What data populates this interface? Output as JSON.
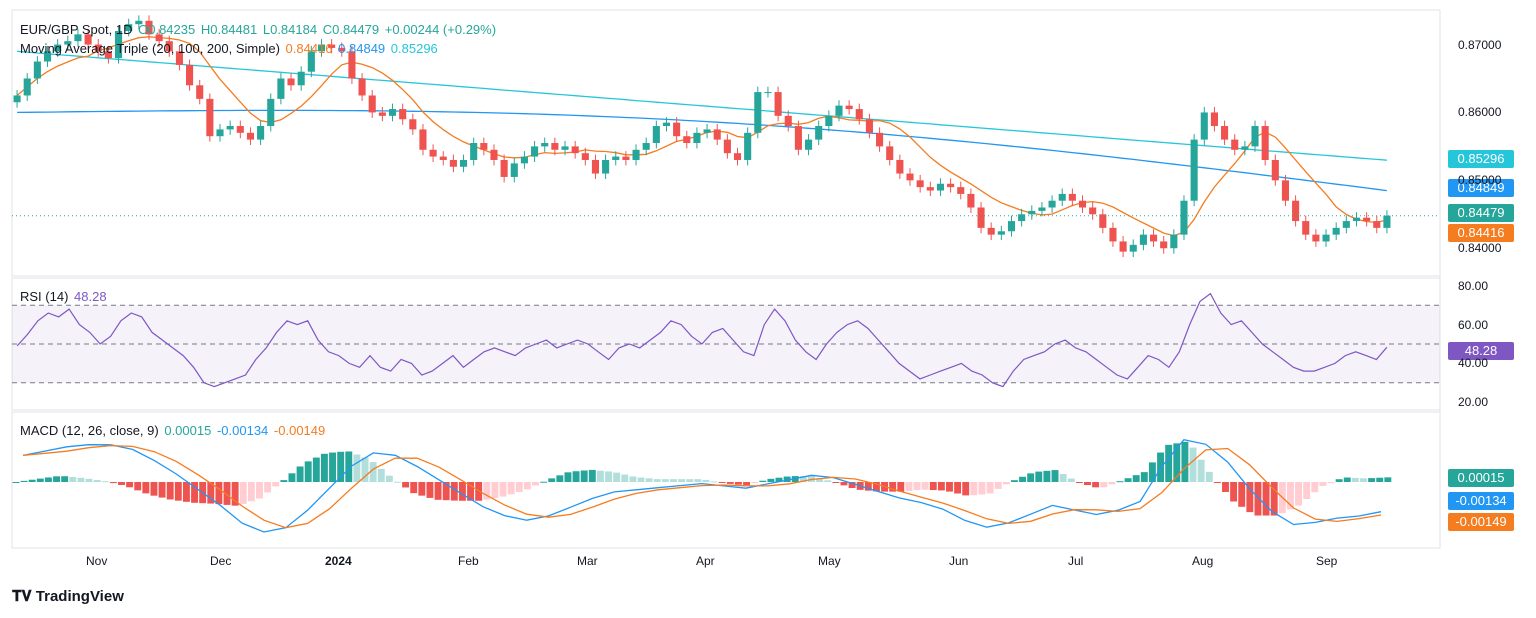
{
  "header": {
    "symbol": "EUR/GBP Spot, 1D",
    "open": "O0.84235",
    "high": "H0.84481",
    "low": "L0.84184",
    "close": "C0.84479",
    "change": "+0.00244 (+0.29%)",
    "ma_label": "Moving Average Triple (20, 100, 200, Simple)",
    "ma20": "0.84416",
    "ma100": "0.84849",
    "ma200": "0.85296"
  },
  "rsi": {
    "label": "RSI (14)",
    "value": "48.28"
  },
  "macd": {
    "label": "MACD (12, 26, close, 9)",
    "hist": "0.00015",
    "macd": "-0.00134",
    "signal": "-0.00149"
  },
  "price_badges": {
    "ma200": "0.85296",
    "ma100": "0.84849",
    "close": "0.84479",
    "ma20": "0.84416"
  },
  "brand": "TradingView",
  "colors": {
    "up": "#26a69a",
    "down": "#ef5350",
    "ma20": "#f57c1f",
    "ma100": "#2196f3",
    "ma200": "#26c6da",
    "rsi": "#7e57c2",
    "hist_up": "#26a69a",
    "hist_up_light": "#b2dfdb",
    "hist_down": "#ef5350",
    "hist_down_light": "#ffcdd2"
  },
  "chart_data": [
    {
      "type": "candlestick",
      "title": "EUR/GBP Spot, 1D",
      "x_ticks": [
        "Nov",
        "Dec",
        "2024",
        "Feb",
        "Mar",
        "Apr",
        "May",
        "Jun",
        "Jul",
        "Aug",
        "Sep"
      ],
      "y_ticks": [
        "0.84000",
        "0.85000",
        "0.86000",
        "0.87000"
      ],
      "ylim": [
        0.8365,
        0.8745
      ],
      "close_path": [
        0.8625,
        0.865,
        0.8675,
        0.869,
        0.87,
        0.8705,
        0.8715,
        0.87,
        0.869,
        0.868,
        0.872,
        0.873,
        0.8735,
        0.8715,
        0.8705,
        0.869,
        0.867,
        0.864,
        0.862,
        0.8565,
        0.8575,
        0.858,
        0.857,
        0.856,
        0.858,
        0.862,
        0.865,
        0.864,
        0.866,
        0.869,
        0.87,
        0.8695,
        0.869,
        0.865,
        0.8625,
        0.86,
        0.8595,
        0.8605,
        0.859,
        0.8575,
        0.8545,
        0.8535,
        0.853,
        0.852,
        0.853,
        0.8555,
        0.8545,
        0.853,
        0.8505,
        0.8525,
        0.8535,
        0.855,
        0.8555,
        0.8545,
        0.855,
        0.854,
        0.853,
        0.851,
        0.853,
        0.8535,
        0.853,
        0.8545,
        0.8555,
        0.858,
        0.8585,
        0.8565,
        0.8555,
        0.857,
        0.8575,
        0.856,
        0.854,
        0.853,
        0.857,
        0.863,
        0.863,
        0.8595,
        0.858,
        0.8545,
        0.856,
        0.858,
        0.8595,
        0.861,
        0.8605,
        0.859,
        0.857,
        0.855,
        0.853,
        0.851,
        0.85,
        0.849,
        0.8485,
        0.8495,
        0.849,
        0.848,
        0.846,
        0.843,
        0.842,
        0.8425,
        0.844,
        0.845,
        0.8455,
        0.846,
        0.847,
        0.848,
        0.847,
        0.846,
        0.845,
        0.843,
        0.841,
        0.8395,
        0.8405,
        0.842,
        0.841,
        0.84,
        0.842,
        0.847,
        0.856,
        0.86,
        0.858,
        0.856,
        0.8545,
        0.855,
        0.858,
        0.853,
        0.85,
        0.847,
        0.844,
        0.842,
        0.841,
        0.842,
        0.843,
        0.844,
        0.8445,
        0.844,
        0.843,
        0.8448
      ],
      "series": [
        {
          "name": "MA 20",
          "last": 0.84416
        },
        {
          "name": "MA 100",
          "last": 0.84849
        },
        {
          "name": "MA 200",
          "last": 0.85296
        }
      ],
      "last_close": 0.84479
    },
    {
      "type": "line",
      "title": "RSI (14)",
      "y_ticks": [
        "20.00",
        "40.00",
        "60.00",
        "80.00"
      ],
      "ylim": [
        18,
        82
      ],
      "bands": [
        30,
        50,
        70
      ],
      "values": [
        49,
        55,
        62,
        66,
        64,
        68,
        60,
        56,
        50,
        54,
        62,
        66,
        64,
        56,
        52,
        48,
        44,
        38,
        30,
        28,
        30,
        32,
        34,
        42,
        48,
        56,
        62,
        60,
        62,
        52,
        46,
        44,
        40,
        38,
        44,
        38,
        36,
        42,
        40,
        34,
        36,
        40,
        44,
        38,
        42,
        46,
        48,
        46,
        44,
        48,
        50,
        52,
        48,
        50,
        52,
        50,
        46,
        42,
        48,
        50,
        48,
        52,
        56,
        62,
        60,
        54,
        50,
        56,
        58,
        52,
        46,
        44,
        60,
        68,
        62,
        52,
        46,
        42,
        50,
        56,
        60,
        62,
        58,
        52,
        46,
        40,
        36,
        32,
        34,
        36,
        38,
        40,
        36,
        34,
        30,
        28,
        36,
        42,
        44,
        46,
        50,
        52,
        48,
        46,
        42,
        38,
        34,
        32,
        38,
        44,
        42,
        38,
        46,
        60,
        72,
        76,
        66,
        60,
        62,
        56,
        50,
        46,
        42,
        38,
        36,
        36,
        38,
        40,
        44,
        46,
        44,
        42,
        48.28
      ],
      "last": 48.28
    },
    {
      "type": "bar",
      "title": "MACD (12, 26, close, 9)",
      "series": [
        {
          "name": "MACD",
          "last": -0.00134
        },
        {
          "name": "Signal",
          "last": -0.00149
        },
        {
          "name": "Histogram",
          "last": 0.00015
        }
      ],
      "macd_path": [
        0.0012,
        0.0014,
        0.0016,
        0.0017,
        0.0017,
        0.0015,
        0.001,
        0.0004,
        -0.0003,
        -0.001,
        -0.0018,
        -0.0022,
        -0.002,
        -0.0012,
        -0.0002,
        0.0008,
        0.0014,
        0.0013,
        0.0008,
        0.0002,
        -0.0004,
        -0.001,
        -0.0014,
        -0.0016,
        -0.0014,
        -0.001,
        -0.0006,
        -0.0003,
        -0.0002,
        -0.0001,
        0.0,
        0.0001,
        0.0,
        -0.0001,
        0.0001,
        0.0003,
        0.0005,
        0.0004,
        0.0001,
        -0.0002,
        -0.0005,
        -0.0007,
        -0.001,
        -0.0015,
        -0.0018,
        -0.0016,
        -0.0012,
        -0.0008,
        -0.001,
        -0.0012,
        -0.001,
        -0.0006,
        0.001,
        0.0022,
        0.002,
        0.0012,
        0.0,
        -0.001,
        -0.0016,
        -0.0015,
        -0.0013,
        -0.0012,
        -0.001
      ]
    }
  ]
}
